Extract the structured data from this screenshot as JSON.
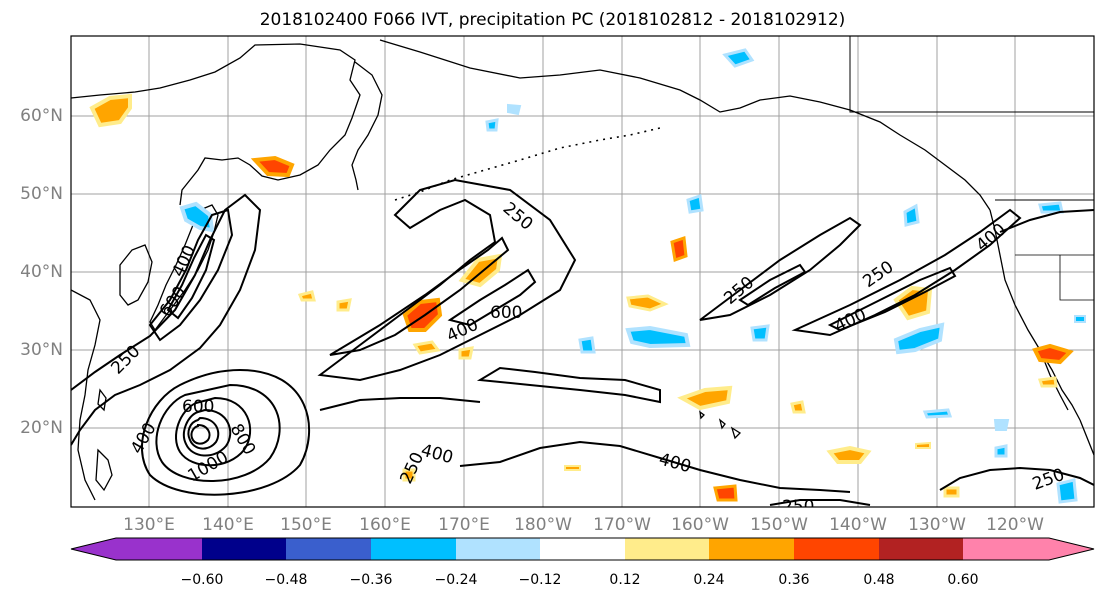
{
  "title": "2018102400 F066 IVT, precipitation PC (2018102812 - 2018102912)",
  "map": {
    "lat_labels": [
      "60°N",
      "50°N",
      "40°N",
      "30°N",
      "20°N"
    ],
    "lon_labels": [
      "130°E",
      "140°E",
      "150°E",
      "160°E",
      "170°E",
      "180°W",
      "170°W",
      "160°W",
      "150°W",
      "140°W",
      "130°W",
      "120°W"
    ],
    "contour_labels": [
      "250",
      "400",
      "600",
      "800",
      "1000"
    ],
    "colors": {
      "coast": "#000000",
      "grid": "#a0a0a0",
      "contour": "#000000"
    }
  },
  "colorbar": {
    "ticks": [
      "−0.60",
      "−0.48",
      "−0.36",
      "−0.24",
      "−0.12",
      "0.12",
      "0.24",
      "0.36",
      "0.48",
      "0.60"
    ],
    "colors": [
      "#9932cc",
      "#00008b",
      "#3a5fcd",
      "#00bfff",
      "#b0e2ff",
      "#ffffff",
      "#ffec8b",
      "#ffa500",
      "#ff4500",
      "#b22222",
      "#ff82ab"
    ]
  }
}
